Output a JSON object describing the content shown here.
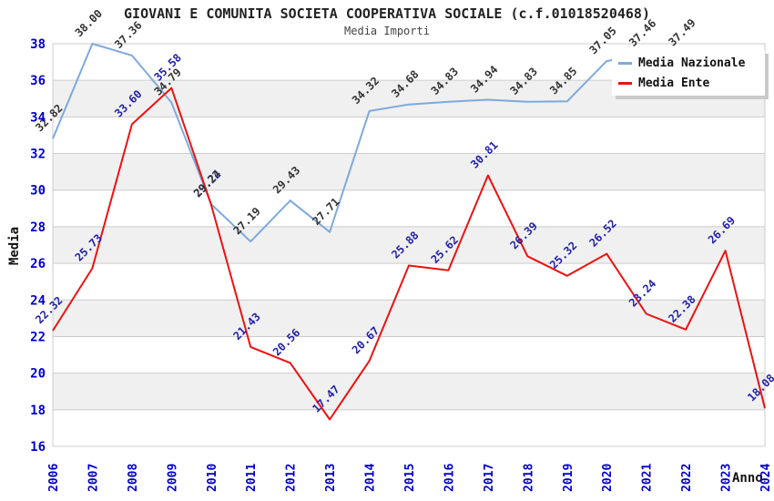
{
  "chart_data": {
    "type": "line",
    "title": "GIOVANI E COMUNITA SOCIETA COOPERATIVA SOCIALE (c.f.01018520468)",
    "subtitle": "Media Importi",
    "xlabel": "Anno",
    "ylabel": "Media",
    "ylim": [
      16,
      38
    ],
    "ytick_step": 2,
    "grid": true,
    "legend_position": "top-right",
    "band_colors": [
      "#ffffff",
      "#f0f0f0"
    ],
    "gridline_color": "#cccccc",
    "axis_tick_color": "#0000CC",
    "categories": [
      2006,
      2007,
      2008,
      2009,
      2010,
      2011,
      2012,
      2013,
      2014,
      2015,
      2016,
      2017,
      2018,
      2019,
      2020,
      2021,
      2022,
      2023,
      2024
    ],
    "series": [
      {
        "name": "Media Nazionale",
        "color": "#7EA9DC",
        "label_color": "#333333",
        "values": [
          32.82,
          38.0,
          37.36,
          34.79,
          29.24,
          27.19,
          29.43,
          27.71,
          34.32,
          34.68,
          34.83,
          34.94,
          34.83,
          34.85,
          37.05,
          37.46,
          37.49,
          null,
          null
        ]
      },
      {
        "name": "Media Ente",
        "color": "#EE1111",
        "label_color": "#2121A8",
        "values": [
          22.32,
          25.73,
          33.6,
          35.58,
          29.22,
          21.43,
          20.56,
          17.47,
          20.67,
          25.88,
          25.62,
          30.81,
          26.39,
          25.32,
          26.52,
          23.24,
          22.38,
          26.69,
          18.08
        ]
      }
    ]
  }
}
